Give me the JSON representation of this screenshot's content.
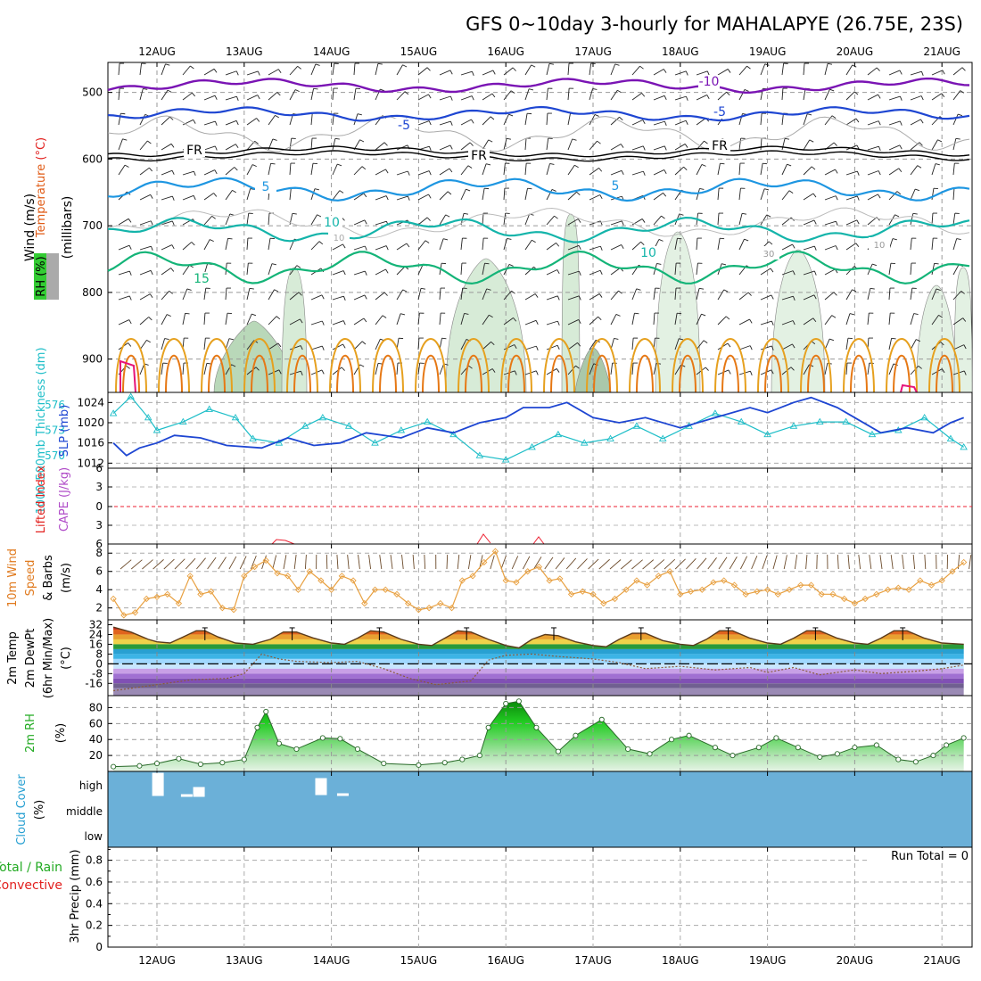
{
  "title": "GFS 0~10day 3-hourly for MAHALAPYE (26.75E, 23S)",
  "dates": [
    "12AUG",
    "13AUG",
    "14AUG",
    "15AUG",
    "16AUG",
    "17AUG",
    "18AUG",
    "19AUG",
    "20AUG",
    "21AUG"
  ],
  "colors": {
    "purple": "#7a14b4",
    "blue": "#1e46d2",
    "lightblue": "#1e96e1",
    "teal": "#14b4aa",
    "green": "#14b478",
    "orange": "#e67814",
    "gold": "#e6a01e",
    "magenta": "#e6147a",
    "cyan": "#1ebec8",
    "bgcloud": "#6bb0d8"
  },
  "panels": {
    "upper": {
      "ylabel": "(millibars)",
      "legend": [
        "Wind (m/s)",
        "Temperature (°C)",
        "RH (%)"
      ],
      "yticks": [
        "500",
        "600",
        "700",
        "800",
        "900"
      ],
      "contour_labels": [
        "-10",
        "-5",
        "FR",
        "5",
        "10",
        "15",
        "10",
        "30",
        "10",
        "-5",
        "5",
        "FR",
        "10",
        "FR"
      ]
    },
    "slp": {
      "left_label": "1000-500mb Thickness (dm)",
      "right_label": "SLP (mb)",
      "left_ticks": [
        "576",
        "573",
        "570"
      ],
      "right_ticks": [
        "1024",
        "1020",
        "1016",
        "1012"
      ]
    },
    "cape": {
      "label_li": "Lifted Index",
      "label_cape": "CAPE (J/kg)",
      "yticks": [
        "6",
        "3",
        "0",
        "3",
        "6"
      ]
    },
    "wind": {
      "label1": "10m Wind",
      "label2": "Speed",
      "label3": "& Barbs",
      "unit": "(m/s)",
      "yticks": [
        "8",
        "6",
        "4",
        "2"
      ]
    },
    "temp": {
      "label1": "2m Temp",
      "label2": "2m DewPt",
      "label3": "(6hr Min/Max)",
      "unit": "(°C)",
      "yticks": [
        "32",
        "24",
        "16",
        "8",
        "0",
        "-8",
        "-16"
      ]
    },
    "rh": {
      "label": "2m RH",
      "unit": "(%)",
      "yticks": [
        "80",
        "60",
        "40",
        "20"
      ]
    },
    "cloud": {
      "label": "Cloud Cover",
      "unit": "(%)",
      "levels": [
        "high",
        "middle",
        "low"
      ]
    },
    "precip": {
      "label1": "Total / Rain",
      "label2": "Convective",
      "label3": "3hr Precip (mm)",
      "yticks": [
        "0.8",
        "0.6",
        "0.4",
        "0.2",
        "0"
      ],
      "run_total": "Run Total = 0"
    }
  },
  "chart_data": [
    {
      "type": "line",
      "name": "SLP (mb)",
      "x_unit": "days from 12AUG 00Z",
      "ylim": [
        1011,
        1026
      ],
      "points": [
        [
          -0.5,
          1016
        ],
        [
          -0.35,
          1013.5
        ],
        [
          -0.2,
          1015
        ],
        [
          0,
          1016
        ],
        [
          0.2,
          1017.5
        ],
        [
          0.5,
          1017
        ],
        [
          0.8,
          1015.5
        ],
        [
          1.2,
          1015
        ],
        [
          1.5,
          1017
        ],
        [
          1.8,
          1015.5
        ],
        [
          2.1,
          1016
        ],
        [
          2.4,
          1018
        ],
        [
          2.8,
          1017
        ],
        [
          3.1,
          1019
        ],
        [
          3.4,
          1018
        ],
        [
          3.7,
          1020
        ],
        [
          4,
          1021
        ],
        [
          4.2,
          1023
        ],
        [
          4.5,
          1023
        ],
        [
          4.7,
          1024
        ],
        [
          5,
          1021
        ],
        [
          5.3,
          1020
        ],
        [
          5.6,
          1021
        ],
        [
          6,
          1019
        ],
        [
          6.4,
          1021
        ],
        [
          6.8,
          1023
        ],
        [
          7,
          1022
        ],
        [
          7.3,
          1024
        ],
        [
          7.5,
          1025
        ],
        [
          7.8,
          1023
        ],
        [
          8,
          1021
        ],
        [
          8.3,
          1018
        ],
        [
          8.6,
          1019
        ],
        [
          8.9,
          1018
        ],
        [
          9.1,
          1020
        ],
        [
          9.25,
          1021
        ]
      ]
    },
    {
      "type": "line",
      "name": "1000-500mb Thickness (dm)",
      "x_unit": "days from 12AUG 00Z",
      "ylim": [
        568.5,
        577.5
      ],
      "points": [
        [
          -0.5,
          575
        ],
        [
          -0.3,
          577
        ],
        [
          -0.1,
          574.5
        ],
        [
          0,
          573
        ],
        [
          0.3,
          574
        ],
        [
          0.6,
          575.5
        ],
        [
          0.9,
          574.5
        ],
        [
          1.1,
          572
        ],
        [
          1.4,
          571.5
        ],
        [
          1.7,
          573.5
        ],
        [
          1.9,
          574.5
        ],
        [
          2.2,
          573.5
        ],
        [
          2.5,
          571.5
        ],
        [
          2.8,
          573
        ],
        [
          3.1,
          574
        ],
        [
          3.4,
          572.5
        ],
        [
          3.7,
          570
        ],
        [
          4,
          569.5
        ],
        [
          4.3,
          571
        ],
        [
          4.6,
          572.5
        ],
        [
          4.9,
          571.5
        ],
        [
          5.2,
          572
        ],
        [
          5.5,
          573.5
        ],
        [
          5.8,
          572
        ],
        [
          6.1,
          573.5
        ],
        [
          6.4,
          575
        ],
        [
          6.7,
          574
        ],
        [
          7,
          572.5
        ],
        [
          7.3,
          573.5
        ],
        [
          7.6,
          574
        ],
        [
          7.9,
          574
        ],
        [
          8.2,
          572.5
        ],
        [
          8.5,
          573
        ],
        [
          8.8,
          574.5
        ],
        [
          9.1,
          572
        ],
        [
          9.25,
          571
        ]
      ]
    },
    {
      "type": "line",
      "name": "10m Wind Speed (m/s)",
      "x_unit": "days from 12AUG 00Z",
      "ylim": [
        0.7,
        9
      ],
      "points": [
        [
          -0.5,
          3
        ],
        [
          -0.38,
          1.2
        ],
        [
          -0.25,
          1.5
        ],
        [
          -0.12,
          3
        ],
        [
          0,
          3.2
        ],
        [
          0.12,
          3.5
        ],
        [
          0.25,
          2.5
        ],
        [
          0.38,
          5.5
        ],
        [
          0.5,
          3.5
        ],
        [
          0.62,
          3.8
        ],
        [
          0.75,
          2
        ],
        [
          0.88,
          1.8
        ],
        [
          1,
          5.5
        ],
        [
          1.12,
          6.5
        ],
        [
          1.25,
          7.2
        ],
        [
          1.38,
          5.8
        ],
        [
          1.5,
          5.5
        ],
        [
          1.62,
          4
        ],
        [
          1.75,
          6
        ],
        [
          1.88,
          5
        ],
        [
          2,
          4
        ],
        [
          2.12,
          5.5
        ],
        [
          2.25,
          5
        ],
        [
          2.38,
          2.5
        ],
        [
          2.5,
          4
        ],
        [
          2.62,
          4
        ],
        [
          2.75,
          3.5
        ],
        [
          2.88,
          2.5
        ],
        [
          3,
          1.8
        ],
        [
          3.12,
          2
        ],
        [
          3.25,
          2.5
        ],
        [
          3.38,
          2
        ],
        [
          3.5,
          5
        ],
        [
          3.62,
          5.5
        ],
        [
          3.75,
          7
        ],
        [
          3.88,
          8.2
        ],
        [
          4,
          5
        ],
        [
          4.12,
          4.8
        ],
        [
          4.25,
          6
        ],
        [
          4.38,
          6.5
        ],
        [
          4.5,
          5
        ],
        [
          4.62,
          5.2
        ],
        [
          4.75,
          3.5
        ],
        [
          4.88,
          3.8
        ],
        [
          5,
          3.5
        ],
        [
          5.12,
          2.5
        ],
        [
          5.25,
          3
        ],
        [
          5.38,
          4
        ],
        [
          5.5,
          5
        ],
        [
          5.62,
          4.5
        ],
        [
          5.75,
          5.5
        ],
        [
          5.88,
          6
        ],
        [
          6,
          3.5
        ],
        [
          6.12,
          3.8
        ],
        [
          6.25,
          4
        ],
        [
          6.38,
          4.8
        ],
        [
          6.5,
          5
        ],
        [
          6.62,
          4.5
        ],
        [
          6.75,
          3.5
        ],
        [
          6.88,
          3.8
        ],
        [
          7,
          4
        ],
        [
          7.12,
          3.5
        ],
        [
          7.25,
          4
        ],
        [
          7.38,
          4.5
        ],
        [
          7.5,
          4.5
        ],
        [
          7.62,
          3.5
        ],
        [
          7.75,
          3.5
        ],
        [
          7.88,
          3
        ],
        [
          8,
          2.5
        ],
        [
          8.12,
          3
        ],
        [
          8.25,
          3.5
        ],
        [
          8.38,
          4
        ],
        [
          8.5,
          4.2
        ],
        [
          8.62,
          4
        ],
        [
          8.75,
          5
        ],
        [
          8.88,
          4.5
        ],
        [
          9,
          5
        ],
        [
          9.12,
          6
        ],
        [
          9.25,
          7
        ]
      ]
    },
    {
      "type": "line",
      "name": "2m Temp (°C)",
      "x_unit": "days from 12AUG 00Z",
      "ylim": [
        -26,
        36
      ],
      "points": [
        [
          -0.5,
          30
        ],
        [
          -0.3,
          26
        ],
        [
          -0.1,
          20
        ],
        [
          0,
          18
        ],
        [
          0.15,
          17
        ],
        [
          0.3,
          22
        ],
        [
          0.45,
          27
        ],
        [
          0.55,
          27
        ],
        [
          0.7,
          22
        ],
        [
          0.9,
          17
        ],
        [
          1.1,
          16
        ],
        [
          1.3,
          20
        ],
        [
          1.45,
          26
        ],
        [
          1.6,
          26
        ],
        [
          1.8,
          21
        ],
        [
          2,
          17
        ],
        [
          2.15,
          16
        ],
        [
          2.3,
          21
        ],
        [
          2.45,
          27
        ],
        [
          2.6,
          26
        ],
        [
          2.8,
          20
        ],
        [
          3,
          16
        ],
        [
          3.15,
          15
        ],
        [
          3.3,
          21
        ],
        [
          3.45,
          27
        ],
        [
          3.6,
          26
        ],
        [
          3.8,
          20
        ],
        [
          4,
          15
        ],
        [
          4.15,
          13
        ],
        [
          4.3,
          20
        ],
        [
          4.45,
          24
        ],
        [
          4.6,
          23
        ],
        [
          4.8,
          18
        ],
        [
          5,
          15
        ],
        [
          5.15,
          14
        ],
        [
          5.3,
          20
        ],
        [
          5.45,
          25
        ],
        [
          5.6,
          25
        ],
        [
          5.8,
          19
        ],
        [
          6,
          16
        ],
        [
          6.15,
          15
        ],
        [
          6.3,
          20
        ],
        [
          6.45,
          27
        ],
        [
          6.6,
          27
        ],
        [
          6.8,
          21
        ],
        [
          7,
          17
        ],
        [
          7.15,
          16
        ],
        [
          7.3,
          21
        ],
        [
          7.45,
          27
        ],
        [
          7.6,
          27
        ],
        [
          7.8,
          21
        ],
        [
          8,
          17
        ],
        [
          8.15,
          16
        ],
        [
          8.3,
          21
        ],
        [
          8.45,
          27
        ],
        [
          8.6,
          27
        ],
        [
          8.8,
          21
        ],
        [
          9,
          17
        ],
        [
          9.25,
          16
        ]
      ]
    },
    {
      "type": "line",
      "name": "2m DewPt (°C)",
      "x_unit": "days from 12AUG 00Z",
      "ylim": [
        -26,
        36
      ],
      "points": [
        [
          -0.5,
          -22
        ],
        [
          -0.3,
          -20
        ],
        [
          0,
          -17
        ],
        [
          0.4,
          -13
        ],
        [
          0.8,
          -12
        ],
        [
          1,
          -8
        ],
        [
          1.2,
          8
        ],
        [
          1.4,
          4
        ],
        [
          1.6,
          2
        ],
        [
          2,
          1
        ],
        [
          2.3,
          2
        ],
        [
          2.6,
          -4
        ],
        [
          2.9,
          -12
        ],
        [
          3.2,
          -17
        ],
        [
          3.6,
          -14
        ],
        [
          3.8,
          3
        ],
        [
          4,
          7
        ],
        [
          4.3,
          8
        ],
        [
          4.6,
          6
        ],
        [
          5,
          4
        ],
        [
          5.3,
          1
        ],
        [
          5.6,
          -4
        ],
        [
          6,
          -2
        ],
        [
          6.4,
          -5
        ],
        [
          6.8,
          -3
        ],
        [
          7,
          -7
        ],
        [
          7.3,
          -3
        ],
        [
          7.6,
          -9
        ],
        [
          8,
          -5
        ],
        [
          8.3,
          -8
        ],
        [
          8.7,
          -6
        ],
        [
          9,
          -4
        ],
        [
          9.25,
          -1
        ]
      ]
    },
    {
      "type": "area",
      "name": "2m RH (%)",
      "x_unit": "days from 12AUG 00Z",
      "ylim": [
        0,
        95
      ],
      "points": [
        [
          -0.5,
          6
        ],
        [
          -0.2,
          7
        ],
        [
          0,
          10
        ],
        [
          0.25,
          16
        ],
        [
          0.5,
          9
        ],
        [
          0.75,
          11
        ],
        [
          1,
          15
        ],
        [
          1.15,
          55
        ],
        [
          1.25,
          75
        ],
        [
          1.4,
          35
        ],
        [
          1.6,
          28
        ],
        [
          1.9,
          42
        ],
        [
          2.1,
          41
        ],
        [
          2.3,
          28
        ],
        [
          2.6,
          10
        ],
        [
          3,
          8
        ],
        [
          3.3,
          11
        ],
        [
          3.5,
          15
        ],
        [
          3.7,
          20
        ],
        [
          3.8,
          55
        ],
        [
          4,
          85
        ],
        [
          4.15,
          88
        ],
        [
          4.35,
          55
        ],
        [
          4.6,
          25
        ],
        [
          4.8,
          45
        ],
        [
          5.1,
          65
        ],
        [
          5.4,
          28
        ],
        [
          5.65,
          22
        ],
        [
          5.9,
          40
        ],
        [
          6.1,
          45
        ],
        [
          6.4,
          30
        ],
        [
          6.6,
          20
        ],
        [
          6.9,
          30
        ],
        [
          7.1,
          42
        ],
        [
          7.35,
          30
        ],
        [
          7.6,
          18
        ],
        [
          7.8,
          22
        ],
        [
          8,
          30
        ],
        [
          8.25,
          33
        ],
        [
          8.5,
          15
        ],
        [
          8.7,
          12
        ],
        [
          8.9,
          20
        ],
        [
          9.05,
          33
        ],
        [
          9.25,
          42
        ]
      ]
    }
  ]
}
